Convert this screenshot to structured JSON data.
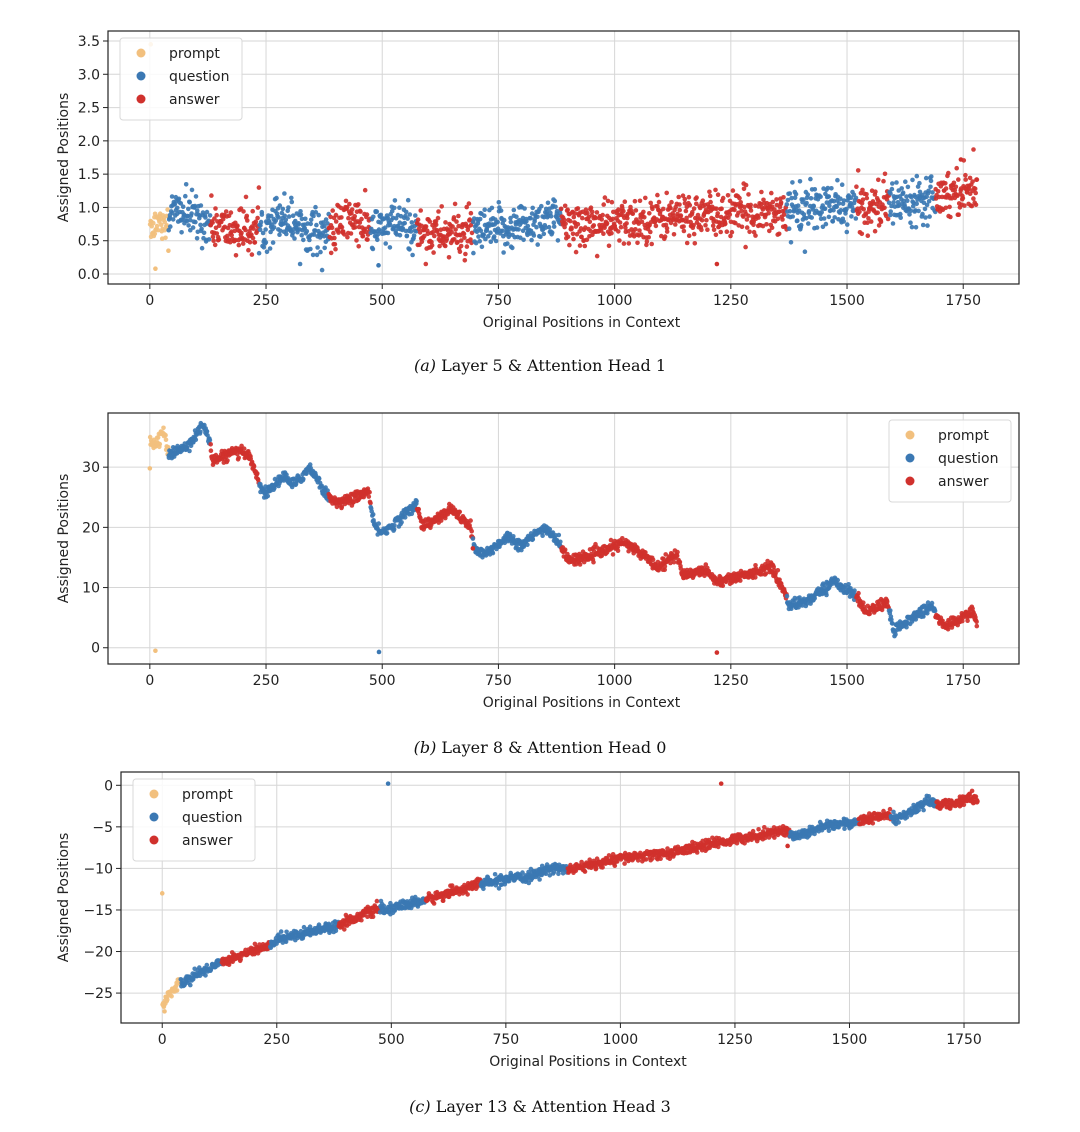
{
  "chart_data": [
    {
      "id": "a",
      "type": "scatter",
      "caption_label": "(a)",
      "caption_text": " Layer 5 & Attention Head 1",
      "xlabel": "Original Positions in Context",
      "ylabel": "Assigned Positions",
      "xlim": [
        -90,
        1870
      ],
      "ylim": [
        -0.15,
        3.65
      ],
      "xticks": [
        0,
        250,
        500,
        750,
        1000,
        1250,
        1500,
        1750
      ],
      "xtick_labels": [
        "0",
        "250",
        "500",
        "750",
        "1000",
        "1250",
        "1500",
        "1750"
      ],
      "yticks": [
        0.0,
        0.5,
        1.0,
        1.5,
        2.0,
        2.5,
        3.0,
        3.5
      ],
      "ytick_labels": [
        "0.0",
        "0.5",
        "1.0",
        "1.5",
        "2.0",
        "2.5",
        "3.0",
        "3.5"
      ],
      "grid": true,
      "legend_position": "top-left",
      "noise": 0.17,
      "trend": [
        [
          0,
          0.75
        ],
        [
          60,
          0.95
        ],
        [
          130,
          0.75
        ],
        [
          180,
          0.65
        ],
        [
          235,
          0.65
        ],
        [
          280,
          0.9
        ],
        [
          330,
          0.7
        ],
        [
          385,
          0.6
        ],
        [
          430,
          0.85
        ],
        [
          475,
          0.65
        ],
        [
          530,
          0.75
        ],
        [
          575,
          0.65
        ],
        [
          640,
          0.6
        ],
        [
          695,
          0.6
        ],
        [
          780,
          0.7
        ],
        [
          860,
          0.85
        ],
        [
          885,
          0.75
        ],
        [
          1000,
          0.75
        ],
        [
          1100,
          0.85
        ],
        [
          1250,
          0.9
        ],
        [
          1370,
          0.95
        ],
        [
          1450,
          1.0
        ],
        [
          1520,
          1.0
        ],
        [
          1590,
          1.05
        ],
        [
          1690,
          1.2
        ],
        [
          1780,
          1.3
        ]
      ],
      "outliers": [
        {
          "x": 12,
          "y": 0.08,
          "cat": "prompt"
        },
        {
          "x": 40,
          "y": 0.35,
          "cat": "prompt"
        },
        {
          "x": 492,
          "y": 0.13,
          "cat": "question"
        },
        {
          "x": 1220,
          "y": 0.15,
          "cat": "answer"
        },
        {
          "x": 1745,
          "y": 1.72,
          "cat": "answer"
        },
        {
          "x": 2,
          "y": 3.45,
          "cat": "prompt"
        }
      ]
    },
    {
      "id": "b",
      "type": "scatter",
      "caption_label": "(b)",
      "caption_text": " Layer 8 & Attention Head 0",
      "xlabel": "Original Positions in Context",
      "ylabel": "Assigned Positions",
      "xlim": [
        -90,
        1870
      ],
      "ylim": [
        -2.7,
        39.0
      ],
      "xticks": [
        0,
        250,
        500,
        750,
        1000,
        1250,
        1500,
        1750
      ],
      "xtick_labels": [
        "0",
        "250",
        "500",
        "750",
        "1000",
        "1250",
        "1500",
        "1750"
      ],
      "yticks": [
        0,
        10,
        20,
        30
      ],
      "ytick_labels": [
        "0",
        "10",
        "20",
        "30"
      ],
      "grid": true,
      "legend_position": "top-right",
      "noise": 0.45,
      "trend": [
        [
          0,
          35
        ],
        [
          10,
          33.5
        ],
        [
          30,
          36
        ],
        [
          40,
          32
        ],
        [
          80,
          33.5
        ],
        [
          115,
          37
        ],
        [
          130,
          34
        ],
        [
          135,
          31
        ],
        [
          180,
          32.5
        ],
        [
          215,
          32
        ],
        [
          235,
          27.5
        ],
        [
          245,
          25.5
        ],
        [
          290,
          28.5
        ],
        [
          310,
          27
        ],
        [
          345,
          30
        ],
        [
          375,
          26
        ],
        [
          385,
          25
        ],
        [
          410,
          24
        ],
        [
          470,
          26
        ],
        [
          480,
          21
        ],
        [
          490,
          19.5
        ],
        [
          510,
          19.5
        ],
        [
          575,
          24
        ],
        [
          585,
          20.5
        ],
        [
          600,
          20.5
        ],
        [
          650,
          23
        ],
        [
          690,
          20
        ],
        [
          700,
          16
        ],
        [
          720,
          15.5
        ],
        [
          770,
          18.5
        ],
        [
          800,
          17
        ],
        [
          850,
          20
        ],
        [
          880,
          17.5
        ],
        [
          900,
          14.5
        ],
        [
          960,
          15.5
        ],
        [
          1020,
          17.5
        ],
        [
          1070,
          15
        ],
        [
          1090,
          13.5
        ],
        [
          1135,
          15.5
        ],
        [
          1145,
          12
        ],
        [
          1195,
          13
        ],
        [
          1220,
          11
        ],
        [
          1280,
          12
        ],
        [
          1335,
          13.5
        ],
        [
          1365,
          9.5
        ],
        [
          1375,
          7
        ],
        [
          1420,
          8
        ],
        [
          1470,
          11
        ],
        [
          1505,
          9.5
        ],
        [
          1525,
          8
        ],
        [
          1540,
          6
        ],
        [
          1585,
          7.5
        ],
        [
          1600,
          3
        ],
        [
          1650,
          5.5
        ],
        [
          1680,
          7
        ],
        [
          1695,
          5
        ],
        [
          1710,
          3.5
        ],
        [
          1770,
          6
        ],
        [
          1780,
          3.5
        ]
      ],
      "outliers": [
        {
          "x": 0,
          "y": 29.8,
          "cat": "prompt"
        },
        {
          "x": 12,
          "y": -0.5,
          "cat": "prompt"
        },
        {
          "x": 493,
          "y": -0.7,
          "cat": "question"
        },
        {
          "x": 1220,
          "y": -0.8,
          "cat": "answer"
        },
        {
          "x": 695,
          "y": 16.5,
          "cat": "answer"
        }
      ]
    },
    {
      "id": "c",
      "type": "scatter",
      "caption_label": "(c)",
      "caption_text": " Layer 13 & Attention Head 3",
      "xlabel": "Original Positions in Context",
      "ylabel": "Assigned Positions",
      "xlim": [
        -90,
        1870
      ],
      "ylim": [
        -28.6,
        1.6
      ],
      "xticks": [
        0,
        250,
        500,
        750,
        1000,
        1250,
        1500,
        1750
      ],
      "xtick_labels": [
        "0",
        "250",
        "500",
        "750",
        "1000",
        "1250",
        "1500",
        "1750"
      ],
      "yticks": [
        0,
        -5,
        -10,
        -15,
        -20,
        -25
      ],
      "ytick_labels": [
        "0",
        "−5",
        "−10",
        "−15",
        "−20",
        "−25"
      ],
      "grid": true,
      "legend_position": "top-left",
      "noise": 0.3,
      "trend": [
        [
          0,
          -26.5
        ],
        [
          15,
          -25
        ],
        [
          40,
          -23.8
        ],
        [
          130,
          -21.2
        ],
        [
          235,
          -19.3
        ],
        [
          250,
          -18.5
        ],
        [
          385,
          -16.8
        ],
        [
          470,
          -14.8
        ],
        [
          490,
          -15
        ],
        [
          575,
          -13.8
        ],
        [
          695,
          -11.8
        ],
        [
          800,
          -11
        ],
        [
          860,
          -9.8
        ],
        [
          885,
          -10.2
        ],
        [
          1000,
          -8.8
        ],
        [
          1100,
          -8.2
        ],
        [
          1250,
          -6.5
        ],
        [
          1360,
          -5.4
        ],
        [
          1380,
          -6.2
        ],
        [
          1450,
          -4.8
        ],
        [
          1520,
          -4.4
        ],
        [
          1590,
          -3.5
        ],
        [
          1600,
          -4.2
        ],
        [
          1670,
          -2
        ],
        [
          1690,
          -2.2
        ],
        [
          1730,
          -2.3
        ],
        [
          1760,
          -1.4
        ],
        [
          1780,
          -1.9
        ]
      ],
      "outliers": [
        {
          "x": 0,
          "y": -13,
          "cat": "prompt"
        },
        {
          "x": 493,
          "y": 0.2,
          "cat": "question"
        },
        {
          "x": 1220,
          "y": 0.2,
          "cat": "answer"
        },
        {
          "x": 5,
          "y": -27.2,
          "cat": "prompt"
        },
        {
          "x": 1365,
          "y": -7.3,
          "cat": "answer"
        }
      ]
    }
  ],
  "segments": [
    {
      "start": 0,
      "end": 40,
      "cat": "prompt"
    },
    {
      "start": 40,
      "end": 130,
      "cat": "question"
    },
    {
      "start": 130,
      "end": 235,
      "cat": "answer"
    },
    {
      "start": 235,
      "end": 385,
      "cat": "question"
    },
    {
      "start": 385,
      "end": 475,
      "cat": "answer"
    },
    {
      "start": 475,
      "end": 575,
      "cat": "question"
    },
    {
      "start": 575,
      "end": 695,
      "cat": "answer"
    },
    {
      "start": 695,
      "end": 885,
      "cat": "question"
    },
    {
      "start": 885,
      "end": 1370,
      "cat": "answer"
    },
    {
      "start": 1370,
      "end": 1520,
      "cat": "question"
    },
    {
      "start": 1520,
      "end": 1590,
      "cat": "answer"
    },
    {
      "start": 1590,
      "end": 1690,
      "cat": "question"
    },
    {
      "start": 1690,
      "end": 1780,
      "cat": "answer"
    }
  ],
  "legend": [
    {
      "key": "prompt",
      "label": "prompt",
      "color": "#f2c07e"
    },
    {
      "key": "question",
      "label": "question",
      "color": "#3b78b3"
    },
    {
      "key": "answer",
      "label": "answer",
      "color": "#d0312d"
    }
  ]
}
